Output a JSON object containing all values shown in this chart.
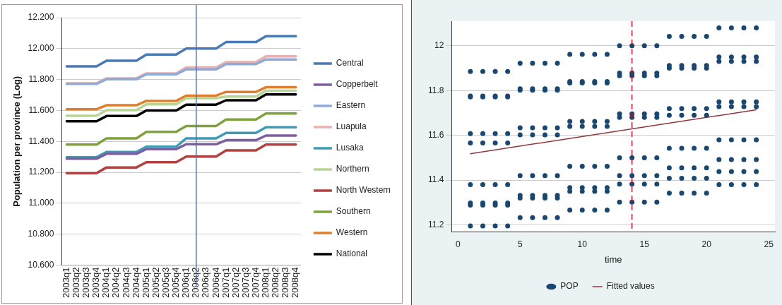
{
  "chart_data": [
    {
      "type": "line",
      "ylabel": "Population per province (Log)",
      "categories": [
        "2003q1",
        "2003q2",
        "2003q3",
        "2003q4",
        "2004q1",
        "2004q2",
        "2004q3",
        "2004q4",
        "2005q1",
        "2005q2",
        "2005q3",
        "2005q4",
        "2006q1",
        "2006q2",
        "2006q3",
        "2006q4",
        "2007q1",
        "2007q2",
        "2007q3",
        "2007q4",
        "2008q1",
        "2008q2",
        "2008q3",
        "2008q4"
      ],
      "series": [
        {
          "name": "Central",
          "color": "#4a7ab5",
          "values": [
            11.885,
            11.885,
            11.885,
            11.885,
            11.922,
            11.922,
            11.922,
            11.922,
            11.962,
            11.962,
            11.962,
            11.962,
            12.0,
            12.0,
            12.0,
            12.0,
            12.042,
            12.042,
            12.042,
            12.042,
            12.08,
            12.08,
            12.08,
            12.08
          ]
        },
        {
          "name": "Copperbelt",
          "color": "#7d5fa0",
          "values": [
            11.288,
            11.288,
            11.288,
            11.288,
            11.32,
            11.32,
            11.32,
            11.32,
            11.35,
            11.35,
            11.35,
            11.35,
            11.382,
            11.382,
            11.382,
            11.382,
            11.408,
            11.408,
            11.408,
            11.408,
            11.438,
            11.438,
            11.438,
            11.438
          ]
        },
        {
          "name": "Eastern",
          "color": "#8eaad8",
          "values": [
            11.772,
            11.772,
            11.772,
            11.772,
            11.802,
            11.802,
            11.802,
            11.802,
            11.834,
            11.834,
            11.834,
            11.834,
            11.866,
            11.866,
            11.866,
            11.866,
            11.9,
            11.9,
            11.9,
            11.9,
            11.93,
            11.93,
            11.93,
            11.93
          ]
        },
        {
          "name": "Luapula",
          "color": "#e6b1b0",
          "values": [
            11.776,
            11.776,
            11.776,
            11.776,
            11.808,
            11.808,
            11.808,
            11.808,
            11.84,
            11.84,
            11.84,
            11.84,
            11.878,
            11.878,
            11.878,
            11.878,
            11.912,
            11.912,
            11.912,
            11.912,
            11.95,
            11.95,
            11.95,
            11.95
          ]
        },
        {
          "name": "Lusaka",
          "color": "#3d9bb5",
          "values": [
            11.298,
            11.298,
            11.298,
            11.298,
            11.332,
            11.332,
            11.332,
            11.332,
            11.366,
            11.366,
            11.366,
            11.366,
            11.42,
            11.42,
            11.42,
            11.42,
            11.455,
            11.455,
            11.455,
            11.455,
            11.492,
            11.492,
            11.492,
            11.492
          ]
        },
        {
          "name": "Northern",
          "color": "#b9d596",
          "values": [
            11.566,
            11.566,
            11.566,
            11.566,
            11.602,
            11.602,
            11.602,
            11.602,
            11.64,
            11.64,
            11.64,
            11.64,
            11.68,
            11.68,
            11.68,
            11.68,
            11.69,
            11.69,
            11.69,
            11.69,
            11.728,
            11.728,
            11.728,
            11.728
          ]
        },
        {
          "name": "North Western",
          "color": "#b0413e",
          "values": [
            11.195,
            11.195,
            11.195,
            11.195,
            11.232,
            11.232,
            11.232,
            11.232,
            11.266,
            11.266,
            11.266,
            11.266,
            11.302,
            11.302,
            11.302,
            11.302,
            11.342,
            11.342,
            11.342,
            11.342,
            11.38,
            11.38,
            11.38,
            11.38
          ]
        },
        {
          "name": "Southern",
          "color": "#7fa33c",
          "values": [
            11.38,
            11.38,
            11.38,
            11.38,
            11.42,
            11.42,
            11.42,
            11.42,
            11.462,
            11.462,
            11.462,
            11.462,
            11.5,
            11.5,
            11.5,
            11.5,
            11.542,
            11.542,
            11.542,
            11.542,
            11.58,
            11.58,
            11.58,
            11.58
          ]
        },
        {
          "name": "Western",
          "color": "#e17e2d",
          "values": [
            11.608,
            11.608,
            11.608,
            11.608,
            11.634,
            11.634,
            11.634,
            11.634,
            11.662,
            11.662,
            11.662,
            11.662,
            11.696,
            11.696,
            11.696,
            11.696,
            11.72,
            11.72,
            11.72,
            11.72,
            11.75,
            11.75,
            11.75,
            11.75
          ]
        },
        {
          "name": "National",
          "color": "#000000",
          "values": [
            11.53,
            11.53,
            11.53,
            11.53,
            11.564,
            11.564,
            11.564,
            11.564,
            11.6,
            11.6,
            11.6,
            11.6,
            11.638,
            11.638,
            11.638,
            11.638,
            11.666,
            11.666,
            11.666,
            11.666,
            11.704,
            11.704,
            11.704,
            11.704
          ]
        }
      ],
      "ylim": [
        10.6,
        12.2
      ],
      "yticks": [
        {
          "value": 10.6,
          "label": "10.600"
        },
        {
          "value": 10.8,
          "label": "10.800"
        },
        {
          "value": 11.0,
          "label": "11.000"
        },
        {
          "value": 11.2,
          "label": "11.200"
        },
        {
          "value": 11.4,
          "label": "11.400"
        },
        {
          "value": 11.6,
          "label": "11.600"
        },
        {
          "value": 11.8,
          "label": "11.800"
        },
        {
          "value": 12.0,
          "label": "12.000"
        },
        {
          "value": 12.2,
          "label": "12.200"
        }
      ],
      "ref_lines": [
        {
          "axis": "x",
          "value": "2006q2",
          "color": "#4472c4",
          "line_style": "solid"
        }
      ],
      "grid": "y",
      "legend": "right",
      "marker": "none",
      "line_style": "solid"
    },
    {
      "type": "scatter",
      "xlabel": "time",
      "series": [
        {
          "name": "POP",
          "type": "scatter",
          "color": "#1a476f",
          "x": [
            1,
            1,
            1,
            1,
            1,
            1,
            1,
            1,
            1,
            2,
            2,
            2,
            2,
            2,
            2,
            2,
            2,
            2,
            3,
            3,
            3,
            3,
            3,
            3,
            3,
            3,
            3,
            4,
            4,
            4,
            4,
            4,
            4,
            4,
            4,
            4,
            5,
            5,
            5,
            5,
            5,
            5,
            5,
            5,
            5,
            6,
            6,
            6,
            6,
            6,
            6,
            6,
            6,
            6,
            7,
            7,
            7,
            7,
            7,
            7,
            7,
            7,
            7,
            8,
            8,
            8,
            8,
            8,
            8,
            8,
            8,
            8,
            9,
            9,
            9,
            9,
            9,
            9,
            9,
            9,
            9,
            10,
            10,
            10,
            10,
            10,
            10,
            10,
            10,
            10,
            11,
            11,
            11,
            11,
            11,
            11,
            11,
            11,
            11,
            12,
            12,
            12,
            12,
            12,
            12,
            12,
            12,
            12,
            13,
            13,
            13,
            13,
            13,
            13,
            13,
            13,
            13,
            14,
            14,
            14,
            14,
            14,
            14,
            14,
            14,
            14,
            15,
            15,
            15,
            15,
            15,
            15,
            15,
            15,
            15,
            16,
            16,
            16,
            16,
            16,
            16,
            16,
            16,
            16,
            17,
            17,
            17,
            17,
            17,
            17,
            17,
            17,
            17,
            18,
            18,
            18,
            18,
            18,
            18,
            18,
            18,
            18,
            19,
            19,
            19,
            19,
            19,
            19,
            19,
            19,
            19,
            20,
            20,
            20,
            20,
            20,
            20,
            20,
            20,
            20,
            21,
            21,
            21,
            21,
            21,
            21,
            21,
            21,
            21,
            22,
            22,
            22,
            22,
            22,
            22,
            22,
            22,
            22,
            23,
            23,
            23,
            23,
            23,
            23,
            23,
            23,
            23,
            24,
            24,
            24,
            24,
            24,
            24,
            24,
            24,
            24
          ],
          "values": [
            11.885,
            11.288,
            11.772,
            11.776,
            11.298,
            11.566,
            11.195,
            11.38,
            11.608,
            11.885,
            11.288,
            11.772,
            11.776,
            11.298,
            11.566,
            11.195,
            11.38,
            11.608,
            11.885,
            11.288,
            11.772,
            11.776,
            11.298,
            11.566,
            11.195,
            11.38,
            11.608,
            11.885,
            11.288,
            11.772,
            11.776,
            11.298,
            11.566,
            11.195,
            11.38,
            11.608,
            11.922,
            11.32,
            11.802,
            11.808,
            11.332,
            11.602,
            11.232,
            11.42,
            11.634,
            11.922,
            11.32,
            11.802,
            11.808,
            11.332,
            11.602,
            11.232,
            11.42,
            11.634,
            11.922,
            11.32,
            11.802,
            11.808,
            11.332,
            11.602,
            11.232,
            11.42,
            11.634,
            11.922,
            11.32,
            11.802,
            11.808,
            11.332,
            11.602,
            11.232,
            11.42,
            11.634,
            11.962,
            11.35,
            11.834,
            11.84,
            11.366,
            11.64,
            11.266,
            11.462,
            11.662,
            11.962,
            11.35,
            11.834,
            11.84,
            11.366,
            11.64,
            11.266,
            11.462,
            11.662,
            11.962,
            11.35,
            11.834,
            11.84,
            11.366,
            11.64,
            11.266,
            11.462,
            11.662,
            11.962,
            11.35,
            11.834,
            11.84,
            11.366,
            11.64,
            11.266,
            11.462,
            11.662,
            12.0,
            11.382,
            11.866,
            11.878,
            11.42,
            11.68,
            11.302,
            11.5,
            11.696,
            12.0,
            11.382,
            11.866,
            11.878,
            11.42,
            11.68,
            11.302,
            11.5,
            11.696,
            12.0,
            11.382,
            11.866,
            11.878,
            11.42,
            11.68,
            11.302,
            11.5,
            11.696,
            12.0,
            11.382,
            11.866,
            11.878,
            11.42,
            11.68,
            11.302,
            11.5,
            11.696,
            12.042,
            11.408,
            11.9,
            11.912,
            11.455,
            11.69,
            11.342,
            11.542,
            11.72,
            12.042,
            11.408,
            11.9,
            11.912,
            11.455,
            11.69,
            11.342,
            11.542,
            11.72,
            12.042,
            11.408,
            11.9,
            11.912,
            11.455,
            11.69,
            11.342,
            11.542,
            11.72,
            12.042,
            11.408,
            11.9,
            11.912,
            11.455,
            11.69,
            11.342,
            11.542,
            11.72,
            12.08,
            11.438,
            11.93,
            11.95,
            11.492,
            11.728,
            11.38,
            11.58,
            11.75,
            12.08,
            11.438,
            11.93,
            11.95,
            11.492,
            11.728,
            11.38,
            11.58,
            11.75,
            12.08,
            11.438,
            11.93,
            11.95,
            11.492,
            11.728,
            11.38,
            11.58,
            11.75,
            12.08,
            11.438,
            11.93,
            11.95,
            11.492,
            11.728,
            11.38,
            11.58,
            11.75
          ]
        },
        {
          "name": "Fitted values",
          "type": "line",
          "color": "#90353b",
          "marker": "none",
          "x": [
            1,
            24
          ],
          "values": [
            11.518,
            11.714
          ]
        }
      ],
      "xlim": [
        -0.5,
        25.5
      ],
      "xticks": [
        0,
        5,
        10,
        15,
        20,
        25
      ],
      "ylim": [
        11.17,
        12.11
      ],
      "yticks": [
        11.2,
        11.4,
        11.6,
        11.8,
        12
      ],
      "ref_lines": [
        {
          "axis": "x",
          "value": 14,
          "color": "#c8102e",
          "line_style": "dashed"
        }
      ],
      "grid": "y",
      "legend": "bottom",
      "marker": "circle",
      "line_style": "solid"
    }
  ]
}
